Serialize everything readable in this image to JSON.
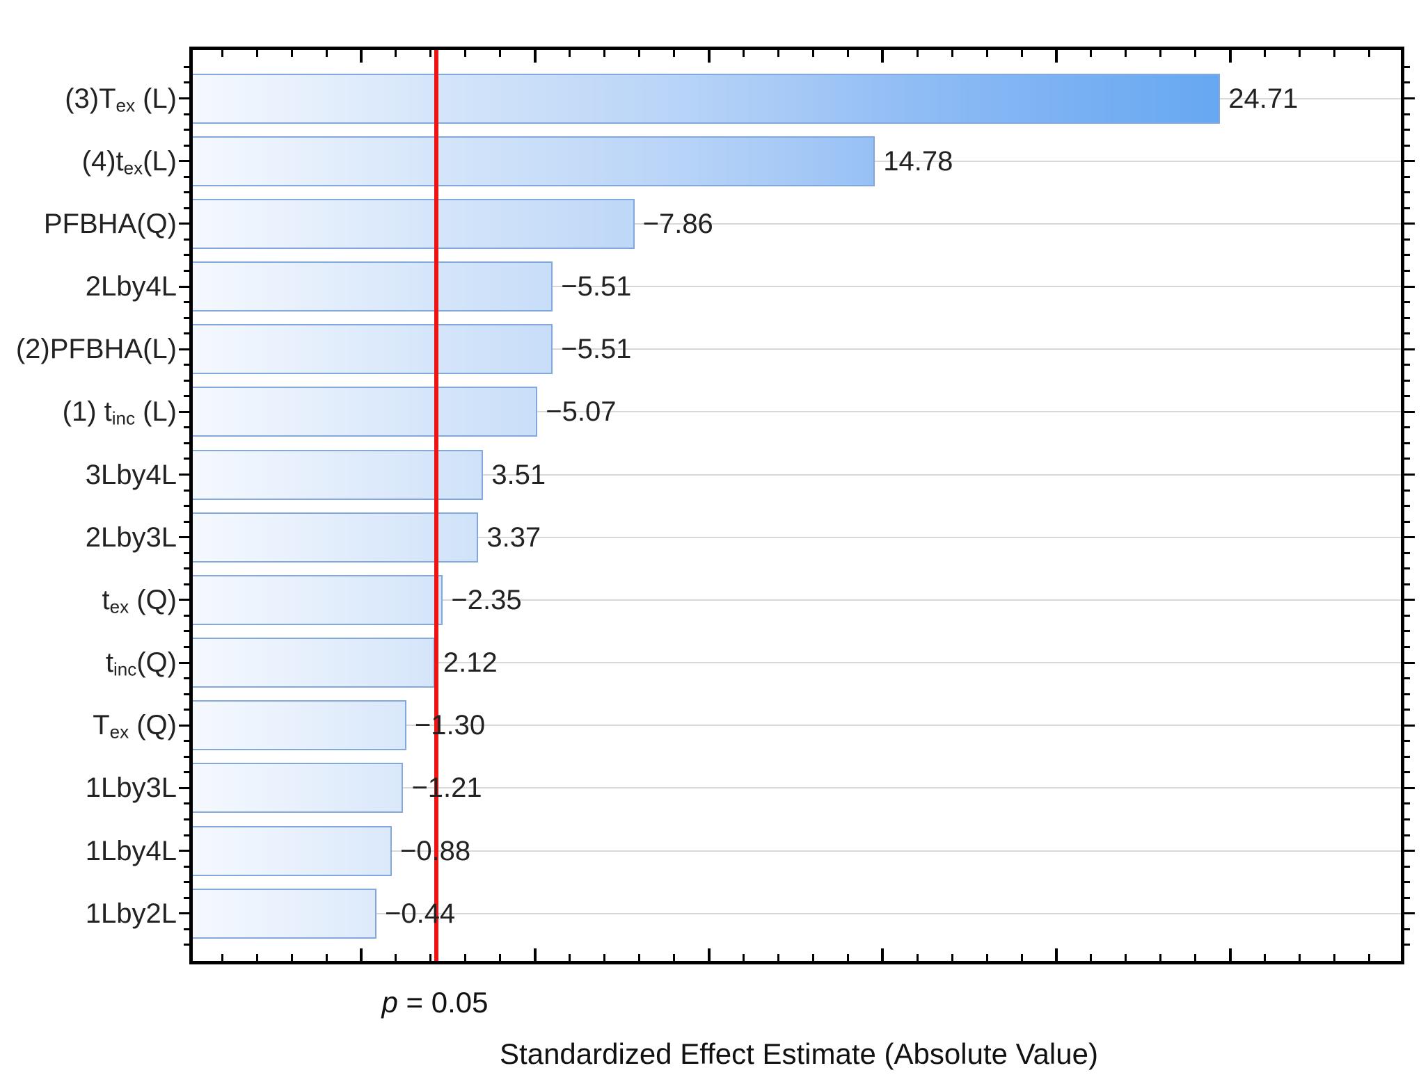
{
  "chart_data": {
    "type": "bar",
    "orientation": "horizontal",
    "xlabel": "Standardized Effect Estimate (Absolute Value)",
    "categories": [
      {
        "label": "(3)Tex (L)",
        "pre": "(3)T",
        "sub": "ex",
        "post": " (L)"
      },
      {
        "label": "(4)tex(L)",
        "pre": "(4)t",
        "sub": "ex",
        "post": "(L)"
      },
      {
        "label": "PFBHA(Q)",
        "pre": "PFBHA(Q)",
        "sub": "",
        "post": ""
      },
      {
        "label": "2Lby4L",
        "pre": "2Lby4L",
        "sub": "",
        "post": ""
      },
      {
        "label": "(2)PFBHA(L)",
        "pre": "(2)PFBHA(L)",
        "sub": "",
        "post": ""
      },
      {
        "label": "(1) tinc (L)",
        "pre": "(1) t",
        "sub": "inc",
        "post": " (L)"
      },
      {
        "label": "3Lby4L",
        "pre": "3Lby4L",
        "sub": "",
        "post": ""
      },
      {
        "label": "2Lby3L",
        "pre": "2Lby3L",
        "sub": "",
        "post": ""
      },
      {
        "label": "tex (Q)",
        "pre": "t",
        "sub": "ex",
        "post": " (Q)"
      },
      {
        "label": "tinc(Q)",
        "pre": "t",
        "sub": "inc",
        "post": "(Q)"
      },
      {
        "label": "Tex (Q)",
        "pre": "T",
        "sub": "ex",
        "post": " (Q)"
      },
      {
        "label": "1Lby3L",
        "pre": "1Lby3L",
        "sub": "",
        "post": ""
      },
      {
        "label": "1Lby4L",
        "pre": "1Lby4L",
        "sub": "",
        "post": ""
      },
      {
        "label": "1Lby2L",
        "pre": "1Lby2L",
        "sub": "",
        "post": ""
      }
    ],
    "values": [
      24.71,
      14.78,
      -7.86,
      -5.51,
      -5.51,
      -5.07,
      3.51,
      3.37,
      -2.35,
      2.12,
      -1.3,
      -1.21,
      -0.88,
      -0.44
    ],
    "value_labels": [
      "24.71",
      "14.78",
      "−7.86",
      "−5.51",
      "−5.51",
      "−5.07",
      "3.51",
      "3.37",
      "−2.35",
      "2.12",
      "−1.30",
      "−1.21",
      "−0.88",
      "−0.44"
    ],
    "x_axis": {
      "xlim": [
        -4.85,
        29.9
      ],
      "minor_tick_step": 1,
      "major_tick_step": 5,
      "tick_labels_shown": false,
      "grid": "horizontal-per-category"
    },
    "significance_line": {
      "label_p": "p",
      "label_rest": " = 0.05",
      "value": 2.16,
      "color": "#ee1414"
    },
    "colors": {
      "bar_gradient_start": "#f5f9fe",
      "bar_gradient_end": "#4f9cef",
      "bar_border": "#83a8dc",
      "gridline": "#d8d8d8",
      "axis": "#000000",
      "text": "#222222"
    }
  }
}
